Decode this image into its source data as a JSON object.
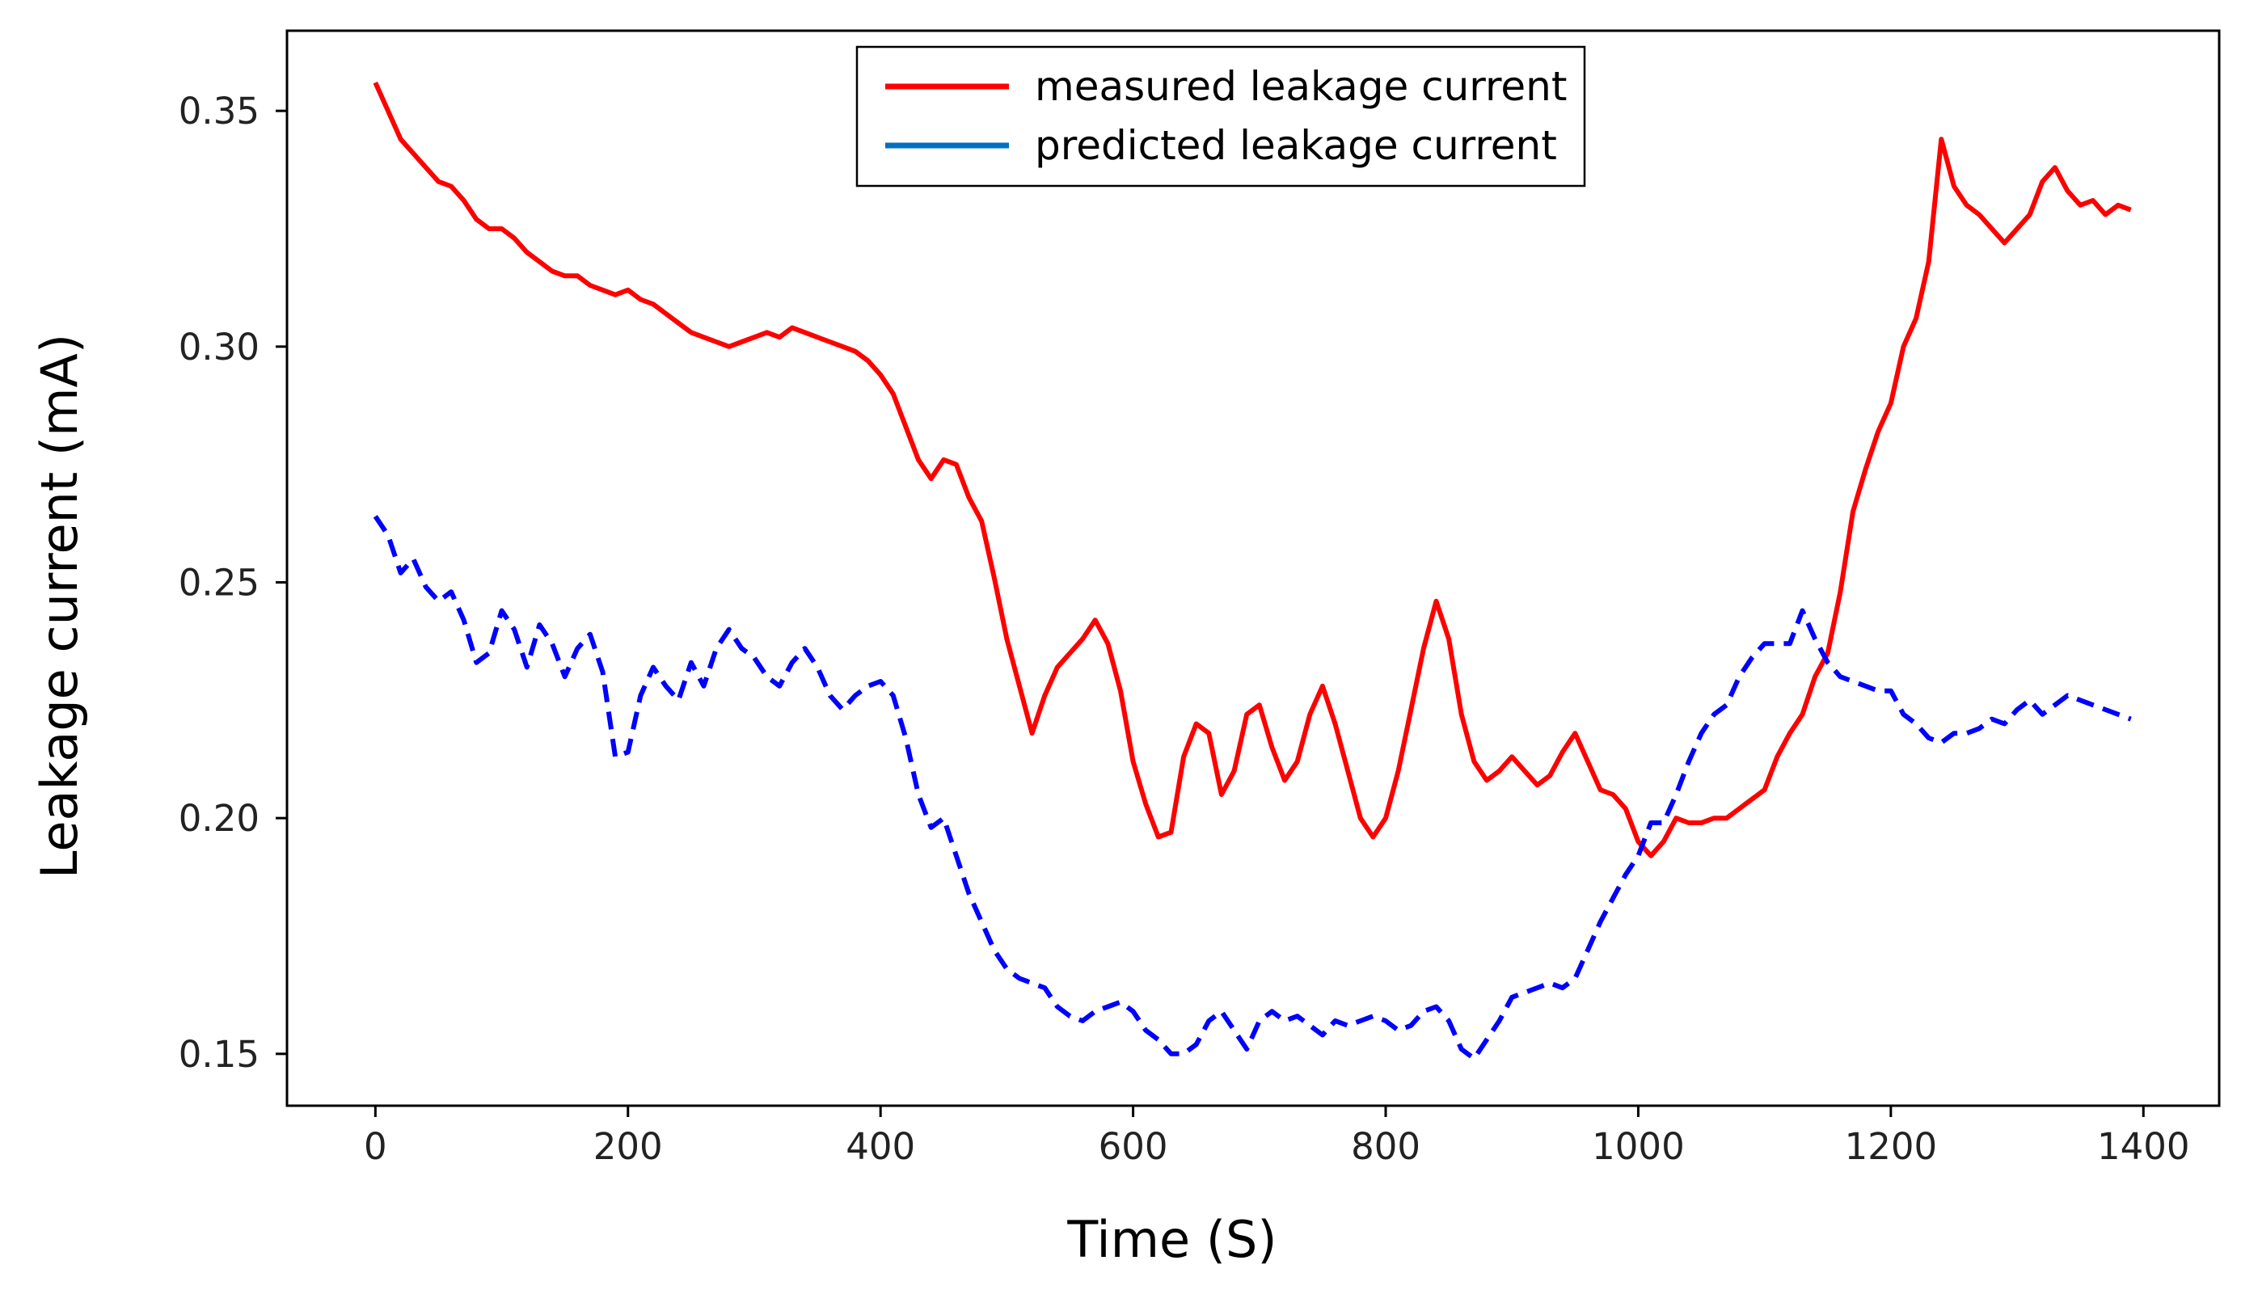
{
  "chart_data": {
    "type": "line",
    "title": "",
    "xlabel": "Time (S)",
    "ylabel": "Leakage current (mA)",
    "xlim": [
      -70,
      1460
    ],
    "ylim": [
      0.139,
      0.367
    ],
    "xticks": [
      0,
      200,
      400,
      600,
      800,
      1000,
      1200,
      1400
    ],
    "xtick_labels": [
      "0",
      "200",
      "400",
      "600",
      "800",
      "1000",
      "1200",
      "1400"
    ],
    "yticks": [
      0.15,
      0.2,
      0.25,
      0.3,
      0.35
    ],
    "ytick_labels": [
      "0.15",
      "0.20",
      "0.25",
      "0.30",
      "0.35"
    ],
    "grid": false,
    "legend_position": "top-center",
    "series": [
      {
        "name": "measured leakage current",
        "color": "#ff0000",
        "style": "solid",
        "x": [
          0,
          10,
          20,
          30,
          40,
          50,
          60,
          70,
          80,
          90,
          100,
          110,
          120,
          130,
          140,
          150,
          160,
          170,
          180,
          190,
          200,
          210,
          220,
          230,
          240,
          250,
          260,
          270,
          280,
          290,
          300,
          310,
          320,
          330,
          340,
          350,
          360,
          370,
          380,
          390,
          400,
          410,
          420,
          430,
          440,
          450,
          460,
          470,
          480,
          490,
          500,
          510,
          520,
          530,
          540,
          550,
          560,
          570,
          580,
          590,
          600,
          610,
          620,
          630,
          640,
          650,
          660,
          670,
          680,
          690,
          700,
          710,
          720,
          730,
          740,
          750,
          760,
          770,
          780,
          790,
          800,
          810,
          820,
          830,
          840,
          850,
          860,
          870,
          880,
          890,
          900,
          910,
          920,
          930,
          940,
          950,
          960,
          970,
          980,
          990,
          1000,
          1010,
          1020,
          1030,
          1040,
          1050,
          1060,
          1070,
          1080,
          1090,
          1100,
          1110,
          1120,
          1130,
          1140,
          1150,
          1160,
          1170,
          1180,
          1190,
          1200,
          1210,
          1220,
          1230,
          1240,
          1250,
          1260,
          1270,
          1280,
          1290,
          1300,
          1310,
          1320,
          1330,
          1340,
          1350,
          1360,
          1370,
          1380,
          1390
        ],
        "values": [
          0.356,
          0.35,
          0.344,
          0.341,
          0.338,
          0.335,
          0.334,
          0.331,
          0.327,
          0.325,
          0.325,
          0.323,
          0.32,
          0.318,
          0.316,
          0.315,
          0.315,
          0.313,
          0.312,
          0.311,
          0.312,
          0.31,
          0.309,
          0.307,
          0.305,
          0.303,
          0.302,
          0.301,
          0.3,
          0.301,
          0.302,
          0.303,
          0.302,
          0.304,
          0.303,
          0.302,
          0.301,
          0.3,
          0.299,
          0.297,
          0.294,
          0.29,
          0.283,
          0.276,
          0.272,
          0.276,
          0.275,
          0.268,
          0.263,
          0.251,
          0.238,
          0.228,
          0.218,
          0.226,
          0.232,
          0.235,
          0.238,
          0.242,
          0.237,
          0.227,
          0.212,
          0.203,
          0.196,
          0.197,
          0.213,
          0.22,
          0.218,
          0.205,
          0.21,
          0.222,
          0.224,
          0.215,
          0.208,
          0.212,
          0.222,
          0.228,
          0.22,
          0.21,
          0.2,
          0.196,
          0.2,
          0.21,
          0.223,
          0.236,
          0.246,
          0.238,
          0.222,
          0.212,
          0.208,
          0.21,
          0.213,
          0.21,
          0.207,
          0.209,
          0.214,
          0.218,
          0.212,
          0.206,
          0.205,
          0.202,
          0.195,
          0.192,
          0.195,
          0.2,
          0.199,
          0.199,
          0.2,
          0.2,
          0.202,
          0.204,
          0.206,
          0.213,
          0.218,
          0.222,
          0.23,
          0.235,
          0.248,
          0.265,
          0.274,
          0.282,
          0.288,
          0.3,
          0.306,
          0.318,
          0.344,
          0.334,
          0.33,
          0.328,
          0.325,
          0.322,
          0.325,
          0.328,
          0.335,
          0.338,
          0.333,
          0.33,
          0.331,
          0.328,
          0.33,
          0.329
        ],
        "values_note": ""
      },
      {
        "name": "predicted leakage current",
        "color": "#0000ff",
        "style": "dashed",
        "x": [
          0,
          10,
          20,
          30,
          40,
          50,
          60,
          70,
          80,
          90,
          100,
          110,
          120,
          130,
          140,
          150,
          160,
          170,
          180,
          190,
          200,
          210,
          220,
          230,
          240,
          250,
          260,
          270,
          280,
          290,
          300,
          310,
          320,
          330,
          340,
          350,
          360,
          370,
          380,
          390,
          400,
          410,
          420,
          430,
          440,
          450,
          460,
          470,
          480,
          490,
          500,
          510,
          520,
          530,
          540,
          550,
          560,
          570,
          580,
          590,
          600,
          610,
          620,
          630,
          640,
          650,
          660,
          670,
          680,
          690,
          700,
          710,
          720,
          730,
          740,
          750,
          760,
          770,
          780,
          790,
          800,
          810,
          820,
          830,
          840,
          850,
          860,
          870,
          880,
          890,
          900,
          910,
          920,
          930,
          940,
          950,
          960,
          970,
          980,
          990,
          1000,
          1010,
          1020,
          1030,
          1040,
          1050,
          1060,
          1070,
          1080,
          1090,
          1100,
          1110,
          1120,
          1130,
          1140,
          1150,
          1160,
          1170,
          1180,
          1190,
          1200,
          1210,
          1220,
          1230,
          1240,
          1250,
          1260,
          1270,
          1280,
          1290,
          1300,
          1310,
          1320,
          1330,
          1340,
          1350,
          1360,
          1370,
          1380,
          1390
        ],
        "values": [
          0.264,
          0.26,
          0.252,
          0.255,
          0.249,
          0.246,
          0.248,
          0.242,
          0.233,
          0.235,
          0.244,
          0.24,
          0.232,
          0.241,
          0.237,
          0.23,
          0.236,
          0.239,
          0.231,
          0.213,
          0.214,
          0.226,
          0.232,
          0.228,
          0.225,
          0.233,
          0.228,
          0.236,
          0.24,
          0.236,
          0.234,
          0.23,
          0.228,
          0.233,
          0.236,
          0.232,
          0.226,
          0.223,
          0.226,
          0.228,
          0.229,
          0.226,
          0.217,
          0.205,
          0.198,
          0.2,
          0.192,
          0.184,
          0.178,
          0.172,
          0.168,
          0.166,
          0.165,
          0.164,
          0.16,
          0.158,
          0.157,
          0.159,
          0.16,
          0.161,
          0.159,
          0.155,
          0.153,
          0.15,
          0.15,
          0.152,
          0.157,
          0.159,
          0.155,
          0.151,
          0.157,
          0.159,
          0.157,
          0.158,
          0.156,
          0.154,
          0.157,
          0.156,
          0.157,
          0.158,
          0.157,
          0.155,
          0.156,
          0.159,
          0.16,
          0.157,
          0.151,
          0.149,
          0.153,
          0.157,
          0.162,
          0.163,
          0.164,
          0.165,
          0.164,
          0.166,
          0.172,
          0.178,
          0.183,
          0.188,
          0.192,
          0.199,
          0.199,
          0.205,
          0.212,
          0.218,
          0.222,
          0.224,
          0.23,
          0.234,
          0.237,
          0.237,
          0.237,
          0.244,
          0.238,
          0.233,
          0.23,
          0.229,
          0.228,
          0.227,
          0.227,
          0.222,
          0.22,
          0.217,
          0.216,
          0.218,
          0.218,
          0.219,
          0.221,
          0.22,
          0.223,
          0.225,
          0.222,
          0.224,
          0.226,
          0.225,
          0.224,
          0.223,
          0.222,
          0.221
        ]
      }
    ]
  }
}
